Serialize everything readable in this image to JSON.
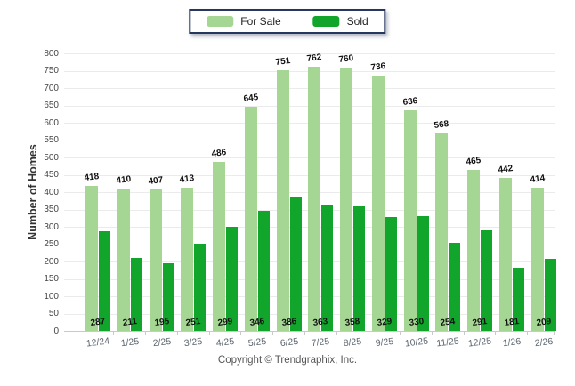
{
  "legend": {
    "items": [
      {
        "label": "For Sale",
        "color": "#a5d693"
      },
      {
        "label": "Sold",
        "color": "#11a52c"
      }
    ],
    "border_color": "#26365e"
  },
  "chart_data": {
    "type": "bar",
    "categories": [
      "12/24",
      "1/25",
      "2/25",
      "3/25",
      "4/25",
      "5/25",
      "6/25",
      "7/25",
      "8/25",
      "9/25",
      "10/25",
      "11/25",
      "12/25",
      "1/26",
      "2/26"
    ],
    "series": [
      {
        "name": "For Sale",
        "color": "#a5d693",
        "values": [
          418,
          410,
          407,
          413,
          486,
          645,
          751,
          762,
          760,
          736,
          636,
          568,
          465,
          442,
          414
        ]
      },
      {
        "name": "Sold",
        "color": "#11a52c",
        "values": [
          287,
          211,
          195,
          251,
          299,
          346,
          386,
          363,
          358,
          329,
          330,
          254,
          291,
          181,
          209
        ]
      }
    ],
    "title": "",
    "xlabel": "",
    "ylabel": "Number of Homes",
    "ylim": [
      0,
      800
    ],
    "ytick_step": 50,
    "grid": true,
    "legend_position": "top-center",
    "value_label_colors": "#111111",
    "gridline_color": "#ebebeb"
  },
  "footer": {
    "copyright": "Copyright © Trendgraphix, Inc."
  }
}
